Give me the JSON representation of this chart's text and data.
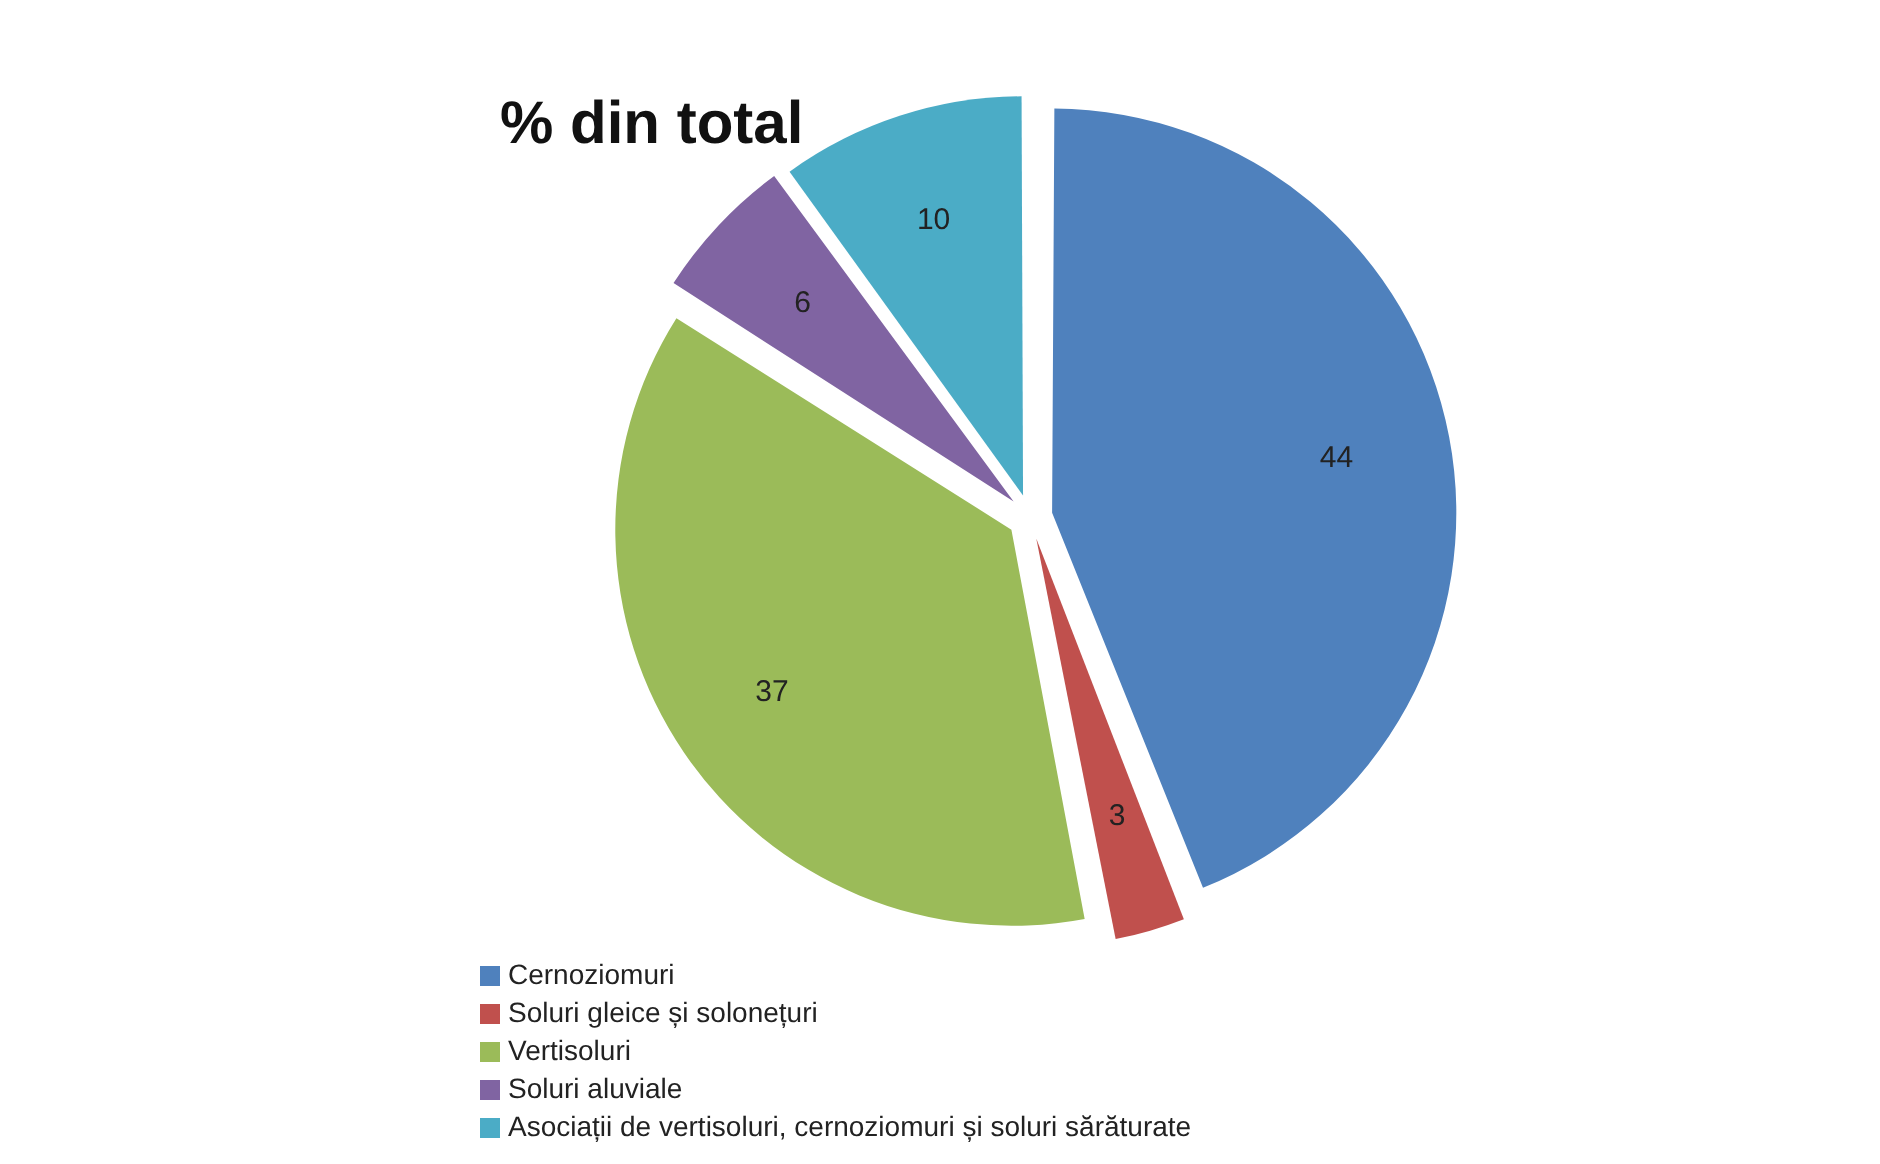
{
  "chart_data": {
    "type": "pie",
    "title": "% din total",
    "categories": [
      "Cernoziomuri",
      "Soluri gleice și solonețuri",
      "Vertisoluri",
      "Soluri aluviale",
      "Asociații de vertisoluri, cernoziomuri și soluri sărăturate"
    ],
    "values": [
      44,
      3,
      37,
      6,
      10
    ],
    "colors": [
      "#4f81bd",
      "#c0504d",
      "#9bbb59",
      "#8064a2",
      "#4bacc6"
    ],
    "data_labels": true,
    "legend": "bottom"
  }
}
